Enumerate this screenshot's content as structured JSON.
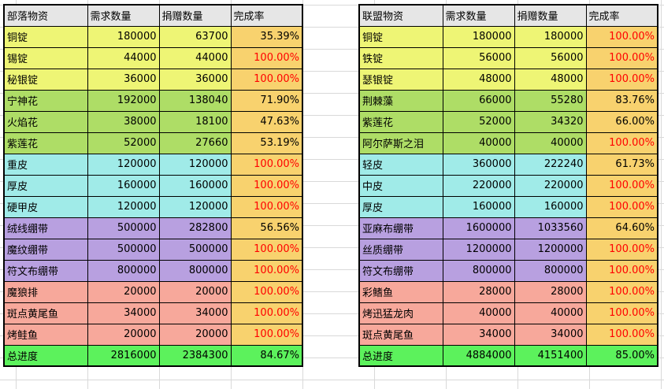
{
  "colors": {
    "header": "#e6e6e6",
    "ingot": "#eef575",
    "herb": "#aedd66",
    "leather": "#a0ebe8",
    "bandage": "#b8a0e0",
    "food": "#f7a89b",
    "rate": "#f8d26e",
    "total": "#5cf25c",
    "complete_text": "#ff0000"
  },
  "tribe": {
    "headers": [
      "部落物资",
      "需求数量",
      "捐赠数量",
      "完成率"
    ],
    "rows": [
      {
        "name": "铜锭",
        "need": "180000",
        "donated": "63700",
        "rate": "35.39%",
        "group": "ingot"
      },
      {
        "name": "锡锭",
        "need": "44000",
        "donated": "44000",
        "rate": "100.00%",
        "group": "ingot"
      },
      {
        "name": "秘银锭",
        "need": "36000",
        "donated": "36000",
        "rate": "100.00%",
        "group": "ingot"
      },
      {
        "name": "宁神花",
        "need": "192000",
        "donated": "138040",
        "rate": "71.90%",
        "group": "herb"
      },
      {
        "name": "火焰花",
        "need": "38000",
        "donated": "18100",
        "rate": "47.63%",
        "group": "herb"
      },
      {
        "name": "紫莲花",
        "need": "52000",
        "donated": "27660",
        "rate": "53.19%",
        "group": "herb"
      },
      {
        "name": "重皮",
        "need": "120000",
        "donated": "120000",
        "rate": "100.00%",
        "group": "leather"
      },
      {
        "name": "厚皮",
        "need": "160000",
        "donated": "160000",
        "rate": "100.00%",
        "group": "leather"
      },
      {
        "name": "硬甲皮",
        "need": "120000",
        "donated": "120000",
        "rate": "100.00%",
        "group": "leather"
      },
      {
        "name": "绒线绷带",
        "need": "500000",
        "donated": "282800",
        "rate": "56.56%",
        "group": "bandage"
      },
      {
        "name": "魔纹绷带",
        "need": "500000",
        "donated": "500000",
        "rate": "100.00%",
        "group": "bandage"
      },
      {
        "name": "符文布绷带",
        "need": "800000",
        "donated": "800000",
        "rate": "100.00%",
        "group": "bandage"
      },
      {
        "name": "魔狼排",
        "need": "20000",
        "donated": "20000",
        "rate": "100.00%",
        "group": "food"
      },
      {
        "name": "斑点黄尾鱼",
        "need": "34000",
        "donated": "34000",
        "rate": "100.00%",
        "group": "food"
      },
      {
        "name": "烤鲑鱼",
        "need": "20000",
        "donated": "20000",
        "rate": "100.00%",
        "group": "food"
      }
    ],
    "total": {
      "name": "总进度",
      "need": "2816000",
      "donated": "2384300",
      "rate": "84.67%"
    }
  },
  "alliance": {
    "headers": [
      "联盟物资",
      "需求数量",
      "捐赠数量",
      "完成率"
    ],
    "rows": [
      {
        "name": "铜锭",
        "need": "180000",
        "donated": "180000",
        "rate": "100.00%",
        "group": "ingot"
      },
      {
        "name": "铁锭",
        "need": "56000",
        "donated": "56000",
        "rate": "100.00%",
        "group": "ingot"
      },
      {
        "name": "瑟银锭",
        "need": "48000",
        "donated": "48000",
        "rate": "100.00%",
        "group": "ingot"
      },
      {
        "name": "荆棘藻",
        "need": "66000",
        "donated": "55280",
        "rate": "83.76%",
        "group": "herb"
      },
      {
        "name": "紫莲花",
        "need": "52000",
        "donated": "34320",
        "rate": "66.00%",
        "group": "herb"
      },
      {
        "name": "阿尔萨斯之泪",
        "need": "40000",
        "donated": "40000",
        "rate": "100.00%",
        "group": "herb"
      },
      {
        "name": "轻皮",
        "need": "360000",
        "donated": "222240",
        "rate": "61.73%",
        "group": "leather"
      },
      {
        "name": "中皮",
        "need": "220000",
        "donated": "220000",
        "rate": "100.00%",
        "group": "leather"
      },
      {
        "name": "厚皮",
        "need": "160000",
        "donated": "160000",
        "rate": "100.00%",
        "group": "leather"
      },
      {
        "name": "亚麻布绷带",
        "need": "1600000",
        "donated": "1033560",
        "rate": "64.60%",
        "group": "bandage"
      },
      {
        "name": "丝质绷带",
        "need": "1200000",
        "donated": "1200000",
        "rate": "100.00%",
        "group": "bandage"
      },
      {
        "name": "符文布绷带",
        "need": "800000",
        "donated": "800000",
        "rate": "100.00%",
        "group": "bandage"
      },
      {
        "name": "彩鳍鱼",
        "need": "28000",
        "donated": "28000",
        "rate": "100.00%",
        "group": "food"
      },
      {
        "name": "烤迅猛龙肉",
        "need": "40000",
        "donated": "40000",
        "rate": "100.00%",
        "group": "food"
      },
      {
        "name": "斑点黄尾鱼",
        "need": "34000",
        "donated": "34000",
        "rate": "100.00%",
        "group": "food"
      }
    ],
    "total": {
      "name": "总进度",
      "need": "4884000",
      "donated": "4151400",
      "rate": "85.00%"
    }
  }
}
